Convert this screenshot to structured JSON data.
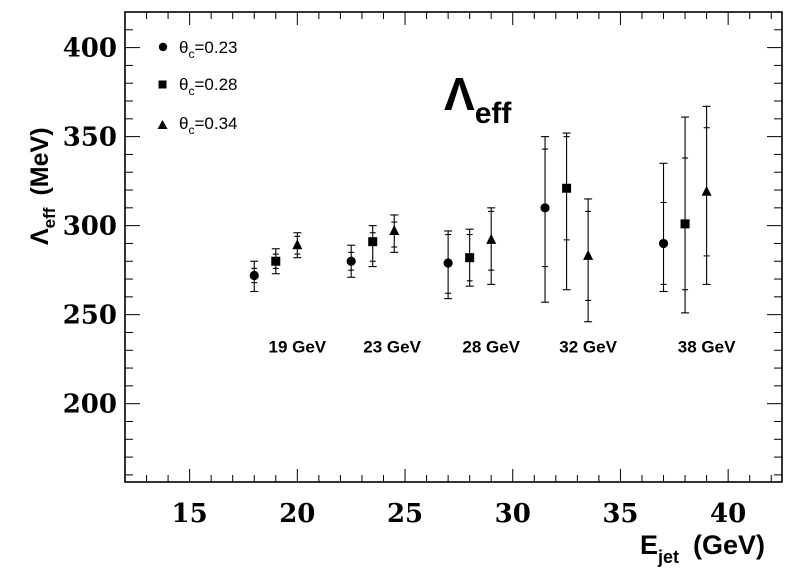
{
  "chart_data": {
    "type": "scatter",
    "title": "Λ",
    "title_sub": "eff",
    "ylabel": "Λ",
    "ylabel_sub": "eff",
    "ylabel_unit": "(MeV)",
    "xlabel": "E",
    "xlabel_sub": "jet",
    "xlabel_unit": "(GeV)",
    "xlim": [
      12,
      42.5
    ],
    "ylim": [
      156,
      420
    ],
    "x_ticks": [
      15,
      20,
      25,
      30,
      35,
      40
    ],
    "y_ticks": [
      200,
      250,
      300,
      350,
      400
    ],
    "grid": false,
    "legend_position": "top-left",
    "series": [
      {
        "name": "θc=0.23",
        "name_main": "θ",
        "name_sub": "c",
        "name_rest": "=0.23",
        "marker": "circle",
        "points": [
          {
            "x": 18.0,
            "y": 272,
            "stat_lo": 268,
            "stat_hi": 276,
            "tot_lo": 263,
            "tot_hi": 280
          },
          {
            "x": 22.5,
            "y": 280,
            "stat_lo": 275,
            "stat_hi": 285,
            "tot_lo": 271,
            "tot_hi": 289
          },
          {
            "x": 27.0,
            "y": 279,
            "stat_lo": 262,
            "stat_hi": 295,
            "tot_lo": 259,
            "tot_hi": 297
          },
          {
            "x": 31.5,
            "y": 310,
            "stat_lo": 277,
            "stat_hi": 343,
            "tot_lo": 257,
            "tot_hi": 350
          },
          {
            "x": 37.0,
            "y": 290,
            "stat_lo": 267,
            "stat_hi": 313,
            "tot_lo": 263,
            "tot_hi": 335
          }
        ]
      },
      {
        "name": "θc=0.28",
        "name_main": "θ",
        "name_sub": "c",
        "name_rest": "=0.28",
        "marker": "square",
        "points": [
          {
            "x": 19.0,
            "y": 280,
            "stat_lo": 276,
            "stat_hi": 284,
            "tot_lo": 273,
            "tot_hi": 287
          },
          {
            "x": 23.5,
            "y": 291,
            "stat_lo": 280,
            "stat_hi": 296,
            "tot_lo": 277,
            "tot_hi": 300
          },
          {
            "x": 28.0,
            "y": 282,
            "stat_lo": 269,
            "stat_hi": 295,
            "tot_lo": 266,
            "tot_hi": 298
          },
          {
            "x": 32.5,
            "y": 321,
            "stat_lo": 292,
            "stat_hi": 350,
            "tot_lo": 264,
            "tot_hi": 352
          },
          {
            "x": 38.0,
            "y": 301,
            "stat_lo": 264,
            "stat_hi": 338,
            "tot_lo": 251,
            "tot_hi": 361
          }
        ]
      },
      {
        "name": "θc=0.34",
        "name_main": "θ",
        "name_sub": "c",
        "name_rest": "=0.34",
        "marker": "triangle",
        "points": [
          {
            "x": 20.0,
            "y": 289,
            "stat_lo": 284,
            "stat_hi": 294,
            "tot_lo": 282,
            "tot_hi": 296
          },
          {
            "x": 24.5,
            "y": 297,
            "stat_lo": 288,
            "stat_hi": 302,
            "tot_lo": 285,
            "tot_hi": 306
          },
          {
            "x": 29.0,
            "y": 292,
            "stat_lo": 275,
            "stat_hi": 308,
            "tot_lo": 267,
            "tot_hi": 310
          },
          {
            "x": 33.5,
            "y": 283,
            "stat_lo": 258,
            "stat_hi": 308,
            "tot_lo": 246,
            "tot_hi": 315
          },
          {
            "x": 39.0,
            "y": 319,
            "stat_lo": 283,
            "stat_hi": 355,
            "tot_lo": 267,
            "tot_hi": 367
          }
        ]
      }
    ],
    "annotations": [
      {
        "text": "19 GeV",
        "x": 20.0,
        "y": 232
      },
      {
        "text": "23 GeV",
        "x": 24.4,
        "y": 232
      },
      {
        "text": "28 GeV",
        "x": 29.0,
        "y": 232
      },
      {
        "text": "32 GeV",
        "x": 33.5,
        "y": 232
      },
      {
        "text": "38 GeV",
        "x": 39.0,
        "y": 232
      }
    ]
  }
}
